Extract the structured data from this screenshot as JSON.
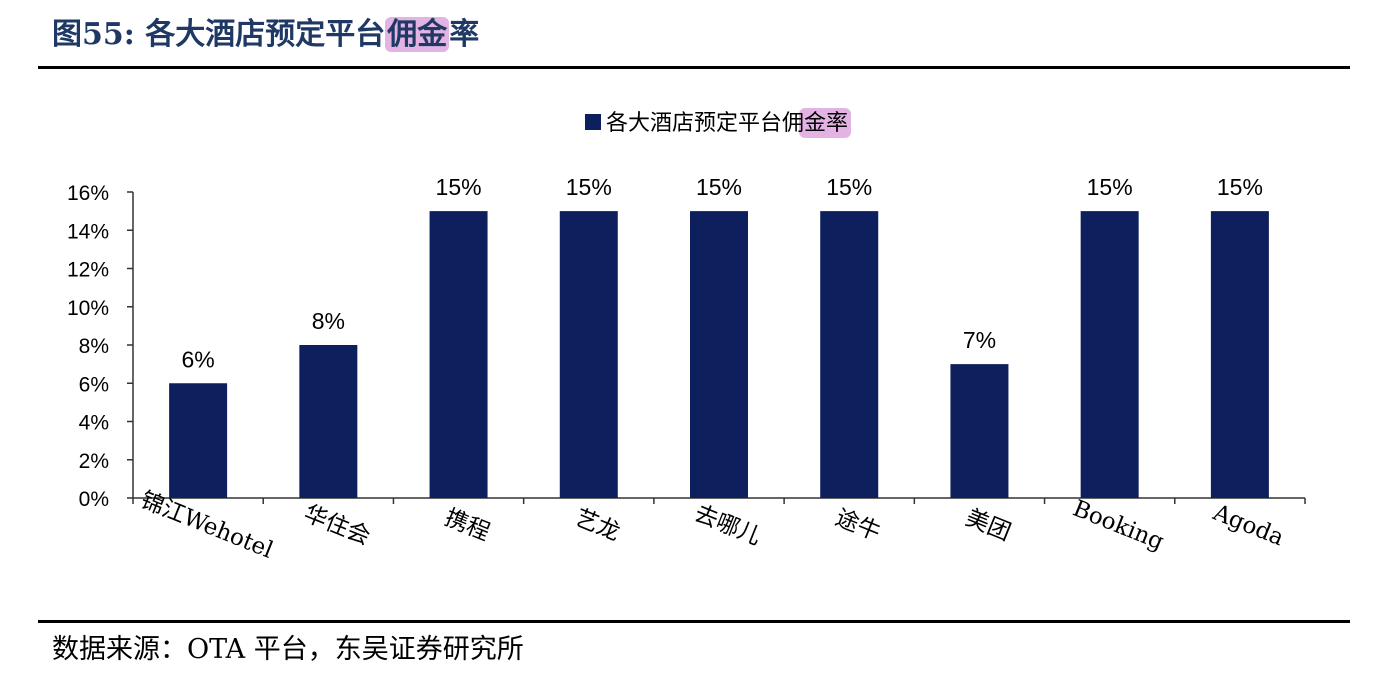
{
  "figure": {
    "title_prefix": "图55:",
    "title_main": "各大酒店预定平台",
    "title_highlight": "佣金",
    "title_suffix": "率",
    "source": "数据来源：OTA 平台，东吴证券研究所"
  },
  "colors": {
    "bar": "#0d1f5c",
    "axis": "#333333",
    "highlight": "#e3b4e3",
    "title": "#1f3864"
  },
  "chart_data": {
    "type": "bar",
    "categories": [
      "锦江Wehotel",
      "华住会",
      "携程",
      "艺龙",
      "去哪儿",
      "途牛",
      "美团",
      "Booking",
      "Agoda"
    ],
    "series": [
      {
        "name": "各大酒店预定平台佣金率",
        "values": [
          6,
          8,
          15,
          15,
          15,
          15,
          7,
          15,
          15
        ]
      }
    ],
    "data_labels": [
      "6%",
      "8%",
      "15%",
      "15%",
      "15%",
      "15%",
      "7%",
      "15%",
      "15%"
    ],
    "legend": {
      "text_main": "各大酒店预定平台",
      "text_highlight": "佣金",
      "text_suffix": "率",
      "position": "top-center"
    },
    "ylim": [
      0,
      16
    ],
    "yticks": [
      "0%",
      "2%",
      "4%",
      "6%",
      "8%",
      "10%",
      "12%",
      "14%",
      "16%"
    ],
    "grid": false
  }
}
